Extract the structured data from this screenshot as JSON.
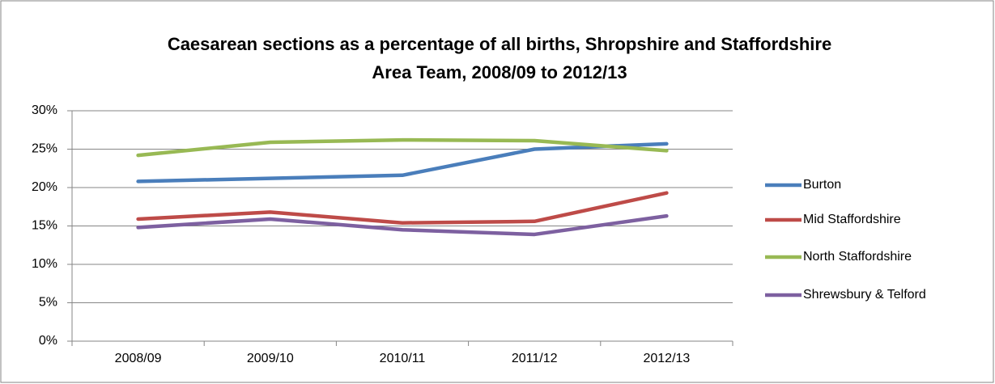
{
  "chart_data": {
    "type": "line",
    "title": [
      "Caesarean sections as a percentage of all births, Shropshire and Staffordshire",
      "Area Team, 2008/09 to 2012/13"
    ],
    "categories": [
      "2008/09",
      "2009/10",
      "2010/11",
      "2011/12",
      "2012/13"
    ],
    "series": [
      {
        "name": "Burton",
        "color": "#4a7ebb",
        "values": [
          20.8,
          21.2,
          21.6,
          25.0,
          25.7
        ]
      },
      {
        "name": "Mid Staffordshire",
        "color": "#be4b48",
        "values": [
          15.9,
          16.8,
          15.4,
          15.6,
          19.3
        ]
      },
      {
        "name": "North Staffordshire",
        "color": "#98b954",
        "values": [
          24.2,
          25.9,
          26.2,
          26.1,
          24.8
        ]
      },
      {
        "name": "Shrewsbury & Telford",
        "color": "#7d60a0",
        "values": [
          14.8,
          15.9,
          14.5,
          13.9,
          16.3
        ]
      }
    ],
    "ylim": [
      0,
      30
    ],
    "yticks": [
      {
        "value": 0,
        "label": "0%"
      },
      {
        "value": 5,
        "label": "5%"
      },
      {
        "value": 10,
        "label": "10%"
      },
      {
        "value": 15,
        "label": "15%"
      },
      {
        "value": 20,
        "label": "20%"
      },
      {
        "value": 25,
        "label": "25%"
      },
      {
        "value": 30,
        "label": "30%"
      }
    ],
    "grid": true,
    "legend": "right"
  }
}
